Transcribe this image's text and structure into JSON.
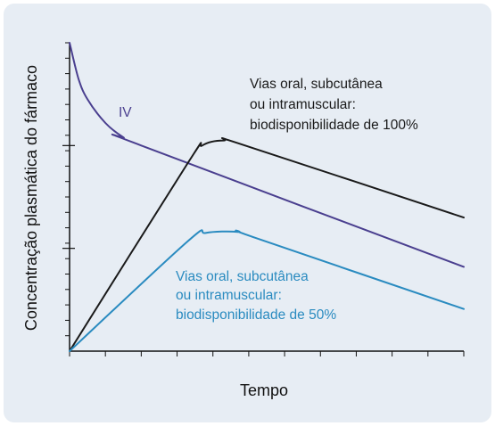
{
  "colors": {
    "background": "#e7edf4",
    "axis": "#111111",
    "iv": "#4a3f8f",
    "full": "#1a1a1a",
    "half": "#2a8bc0"
  },
  "chart_data": {
    "type": "line",
    "xlabel": "Tempo",
    "ylabel": "Concentração plasmática do fármaco",
    "xlim": [
      0,
      11
    ],
    "ylim": [
      0,
      3
    ],
    "x_ticks": 11,
    "y_ticks_minor": 20,
    "y_ticks_major": [
      1,
      2
    ],
    "grid": false,
    "series": [
      {
        "name": "IV",
        "label_lines": [
          "IV"
        ],
        "color": "#4a3f8f",
        "points": [
          [
            0,
            3.0
          ],
          [
            0.25,
            2.65
          ],
          [
            0.5,
            2.45
          ],
          [
            1.0,
            2.22
          ],
          [
            1.5,
            2.08
          ],
          [
            2.0,
            2.0
          ],
          [
            11.0,
            0.82
          ]
        ]
      },
      {
        "name": "Vias oral, subcutânea ou intramuscular: biodisponibilidade de 100%",
        "label_lines": [
          "Vias oral, subcutânea",
          "ou intramuscular:",
          "biodisponibilidade de 100%"
        ],
        "color": "#1a1a1a",
        "points": [
          [
            0,
            0.0
          ],
          [
            3.3,
            1.83
          ],
          [
            3.7,
            2.0
          ],
          [
            4.3,
            2.05
          ],
          [
            4.9,
            2.0
          ],
          [
            11.0,
            1.3
          ]
        ]
      },
      {
        "name": "Vias oral, subcutânea ou intramuscular: biodisponibilidade de 50%",
        "label_lines": [
          "Vias oral, subcutânea",
          "ou intramuscular:",
          "biodisponibilidade de 50%"
        ],
        "color": "#2a8bc0",
        "points": [
          [
            0,
            0.0
          ],
          [
            3.3,
            1.07
          ],
          [
            3.8,
            1.15
          ],
          [
            4.7,
            1.16
          ],
          [
            5.2,
            1.1
          ],
          [
            11.0,
            0.41
          ]
        ]
      }
    ]
  }
}
